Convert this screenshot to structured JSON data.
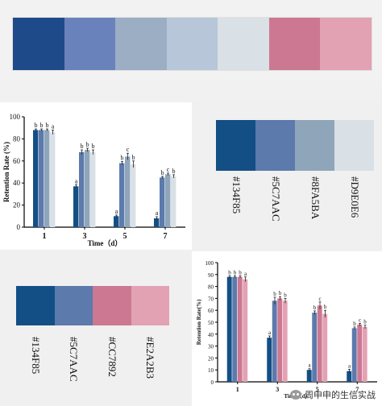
{
  "top_palette": [
    "#1F4A8A",
    "#6A82BC",
    "#9BAEC4",
    "#B7C6D8",
    "#D9E0E6",
    "#CC7892",
    "#E2A2B3"
  ],
  "palette1": {
    "colors": [
      "#134F85",
      "#5C7AAC",
      "#8FA5BA",
      "#D9E0E6"
    ],
    "codes": [
      "#134F85",
      "#5C7AAC",
      "#8FA5BA",
      "#D9E0E6"
    ]
  },
  "palette2": {
    "colors": [
      "#134F85",
      "#5C7AAC",
      "#CC7892",
      "#E2A2B3"
    ],
    "codes": [
      "#134F85",
      "#5C7AAC",
      "#CC7892",
      "#E2A2B3"
    ]
  },
  "watermark": {
    "text": "周申申的生信实战"
  },
  "chart_data": [
    {
      "type": "bar",
      "categories": [
        "1",
        "3",
        "5",
        "7"
      ],
      "series": [
        {
          "values": [
            88,
            37,
            10,
            8
          ],
          "errors": [
            1,
            1.5,
            1,
            1.5
          ],
          "letters": [
            "b",
            "a",
            "a",
            "a"
          ],
          "color": "#134F85"
        },
        {
          "values": [
            88,
            68,
            58,
            45
          ],
          "errors": [
            1,
            2,
            1.5,
            1
          ],
          "letters": [
            "b",
            "b",
            "b",
            "b"
          ],
          "color": "#5C7AAC"
        },
        {
          "values": [
            88,
            70,
            64,
            48
          ],
          "errors": [
            1,
            1.5,
            3,
            1
          ],
          "letters": [
            "b",
            "b",
            "c",
            "c"
          ],
          "color": "#8FA5BA"
        },
        {
          "values": [
            86,
            68,
            57,
            46
          ],
          "errors": [
            2,
            2,
            3,
            1.5
          ],
          "letters": [
            "a",
            "b",
            "b",
            "b"
          ],
          "color": "#D9E0E6"
        }
      ],
      "xlabel": "Time（d）",
      "ylabel": "Retention Rate (%)",
      "ylim": [
        0,
        100
      ],
      "yticks": [
        0,
        20,
        40,
        60,
        80,
        100
      ]
    },
    {
      "type": "bar",
      "categories": [
        "1",
        "3",
        "5",
        "7"
      ],
      "series": [
        {
          "values": [
            88,
            37,
            10,
            9
          ],
          "errors": [
            1,
            1.5,
            1,
            1.5
          ],
          "letters": [
            "b",
            "a",
            "a",
            "a"
          ],
          "color": "#134F85"
        },
        {
          "values": [
            88,
            68,
            58,
            45
          ],
          "errors": [
            1,
            3,
            1.5,
            1
          ],
          "letters": [
            "b",
            "b",
            "b",
            "b"
          ],
          "color": "#5C7AAC"
        },
        {
          "values": [
            88,
            70,
            64,
            48
          ],
          "errors": [
            1,
            1.5,
            3,
            1
          ],
          "letters": [
            "b",
            "b",
            "c",
            "c"
          ],
          "color": "#CC7892"
        },
        {
          "values": [
            86,
            68,
            57,
            46
          ],
          "errors": [
            2,
            2,
            3,
            1.5
          ],
          "letters": [
            "a",
            "b",
            "b",
            "b"
          ],
          "color": "#E2A2B3"
        }
      ],
      "xlabel": "Time（d）",
      "ylabel": "Retention Rate(%)",
      "ylim": [
        0,
        100
      ],
      "yticks": [
        0,
        10,
        20,
        30,
        40,
        50,
        60,
        70,
        80,
        90,
        100
      ]
    }
  ]
}
